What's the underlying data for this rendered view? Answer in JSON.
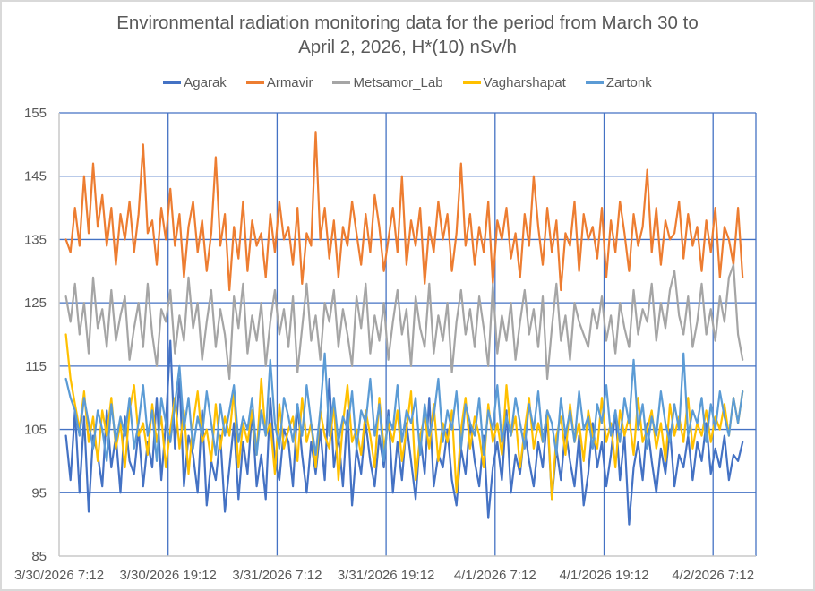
{
  "chart_data": {
    "type": "line",
    "title_line1": "Environmental radiation monitoring data for the period from March 30 to",
    "title_line2": "April 2, 2026, H*(10) nSv/h",
    "xlabel": "",
    "ylabel": "",
    "ylim": [
      85,
      155
    ],
    "yticks": [
      "155",
      "145",
      "135",
      "125",
      "115",
      "105",
      "95",
      "85"
    ],
    "ytick_values": [
      155,
      145,
      135,
      125,
      115,
      105,
      95,
      85
    ],
    "xticks": [
      "3/30/2026 7:12",
      "3/30/2026 19:12",
      "3/31/2026 7:12",
      "3/31/2026 19:12",
      "4/1/2026 7:12",
      "4/1/2026 19:12",
      "4/2/2026 7:12"
    ],
    "xtick_hours": [
      0,
      12,
      24,
      36,
      48,
      60,
      72
    ],
    "x_axis_end_hours": 79.5,
    "x_start_hours": 0.75,
    "x_step_hours": 0.5,
    "grid": true,
    "legend_position": "top",
    "gridline_color": "#4472C4",
    "series": [
      {
        "name": "Agarak",
        "color": "#4472C4",
        "values": [
          104,
          97,
          108,
          95,
          107,
          92,
          104,
          101,
          96,
          108,
          99,
          104,
          95,
          107,
          100,
          98,
          105,
          96,
          103,
          99,
          110,
          97,
          106,
          119,
          102,
          113,
          96,
          104,
          101,
          95,
          108,
          93,
          100,
          97,
          104,
          92,
          99,
          106,
          94,
          103,
          98,
          108,
          96,
          101,
          94,
          110,
          100,
          97,
          105,
          103,
          96,
          109,
          101,
          95,
          103,
          98,
          105,
          97,
          113,
          99,
          104,
          96,
          108,
          93,
          102,
          98,
          106,
          100,
          96,
          104,
          99,
          108,
          95,
          103,
          97,
          106,
          100,
          94,
          104,
          98,
          110,
          96,
          101,
          99,
          105,
          97,
          93,
          102,
          98,
          106,
          100,
          96,
          104,
          91,
          99,
          103,
          97,
          108,
          95,
          101,
          98,
          105,
          100,
          96,
          103,
          99,
          107,
          94,
          102,
          97,
          105,
          100,
          96,
          104,
          93,
          98,
          106,
          99,
          103,
          96,
          101,
          108,
          97,
          104,
          90,
          99,
          103,
          97,
          106,
          100,
          95,
          102,
          98,
          105,
          96,
          101,
          99,
          104,
          97,
          103,
          100,
          106,
          98,
          102,
          99,
          104,
          97,
          101,
          100,
          103
        ]
      },
      {
        "name": "Armavir",
        "color": "#ED7D31",
        "values": [
          135,
          133,
          140,
          134,
          145,
          136,
          147,
          137,
          142,
          134,
          140,
          131,
          139,
          135,
          141,
          133,
          139,
          150,
          136,
          138,
          131,
          140,
          135,
          143,
          134,
          139,
          129,
          137,
          141,
          133,
          138,
          130,
          136,
          148,
          134,
          139,
          127,
          137,
          132,
          141,
          130,
          138,
          134,
          136,
          129,
          139,
          133,
          141,
          135,
          137,
          131,
          140,
          128,
          136,
          134,
          152,
          135,
          140,
          132,
          138,
          129,
          137,
          134,
          141,
          136,
          131,
          139,
          133,
          142,
          137,
          130,
          135,
          140,
          133,
          145,
          131,
          138,
          134,
          140,
          128,
          137,
          133,
          141,
          135,
          139,
          130,
          136,
          147,
          134,
          139,
          131,
          137,
          133,
          141,
          128,
          138,
          135,
          140,
          132,
          136,
          129,
          139,
          134,
          145,
          137,
          131,
          140,
          133,
          138,
          127,
          136,
          134,
          141,
          130,
          139,
          135,
          137,
          132,
          140,
          129,
          138,
          133,
          141,
          136,
          130,
          139,
          134,
          137,
          146,
          133,
          140,
          131,
          138,
          135,
          136,
          141,
          132,
          139,
          134,
          137,
          130,
          138,
          133,
          140,
          129,
          137,
          135,
          131,
          140,
          129
        ]
      },
      {
        "name": "Metsamor_Lab",
        "color": "#A5A5A5",
        "values": [
          126,
          122,
          128,
          120,
          125,
          117,
          129,
          121,
          124,
          118,
          127,
          119,
          123,
          126,
          116,
          121,
          125,
          118,
          128,
          120,
          115,
          124,
          122,
          127,
          117,
          123,
          119,
          129,
          121,
          125,
          116,
          122,
          127,
          118,
          124,
          120,
          113,
          126,
          121,
          128,
          117,
          123,
          119,
          125,
          115,
          122,
          127,
          120,
          124,
          118,
          126,
          114,
          121,
          128,
          119,
          123,
          116,
          125,
          122,
          127,
          118,
          124,
          120,
          115,
          126,
          121,
          128,
          117,
          123,
          119,
          125,
          116,
          122,
          127,
          120,
          124,
          115,
          126,
          121,
          118,
          128,
          117,
          123,
          119,
          125,
          114,
          122,
          127,
          120,
          124,
          118,
          126,
          121,
          115,
          128,
          117,
          123,
          119,
          125,
          116,
          122,
          127,
          120,
          124,
          118,
          126,
          113,
          121,
          128,
          119,
          123,
          116,
          125,
          122,
          120,
          118,
          124,
          121,
          126,
          119,
          123,
          117,
          125,
          121,
          118,
          127,
          120,
          124,
          122,
          128,
          119,
          125,
          121,
          127,
          130,
          123,
          120,
          126,
          118,
          122,
          128,
          120,
          124,
          119,
          126,
          122,
          129,
          131,
          120,
          116
        ]
      },
      {
        "name": "Vagharshapat",
        "color": "#FFC000",
        "values": [
          120,
          113,
          109,
          105,
          111,
          103,
          107,
          100,
          108,
          104,
          110,
          102,
          106,
          99,
          108,
          112,
          104,
          106,
          101,
          109,
          103,
          107,
          99,
          105,
          110,
          102,
          108,
          98,
          106,
          111,
          103,
          105,
          100,
          109,
          102,
          107,
          104,
          111,
          99,
          106,
          103,
          108,
          101,
          113,
          104,
          106,
          98,
          109,
          102,
          105,
          107,
          100,
          110,
          103,
          106,
          99,
          108,
          104,
          102,
          109,
          97,
          106,
          112,
          103,
          105,
          101,
          108,
          104,
          99,
          110,
          102,
          106,
          103,
          108,
          100,
          105,
          111,
          97,
          104,
          107,
          102,
          109,
          100,
          106,
          103,
          108,
          95,
          105,
          110,
          102,
          107,
          104,
          99,
          109,
          103,
          106,
          101,
          112,
          104,
          107,
          99,
          105,
          110,
          102,
          106,
          103,
          108,
          94,
          104,
          107,
          101,
          109,
          103,
          106,
          100,
          108,
          104,
          102,
          110,
          103,
          106,
          99,
          108,
          104,
          107,
          101,
          110,
          103,
          105,
          108,
          102,
          106,
          100,
          109,
          104,
          107,
          103,
          110,
          102,
          106,
          104,
          108,
          103,
          107,
          105,
          109,
          104,
          110,
          106,
          111
        ]
      },
      {
        "name": "Zartonk",
        "color": "#5B9BD5",
        "values": [
          113,
          110,
          108,
          104,
          110,
          106,
          102,
          108,
          105,
          100,
          109,
          103,
          107,
          104,
          110,
          102,
          106,
          112,
          104,
          108,
          100,
          110,
          106,
          103,
          109,
          115,
          105,
          110,
          102,
          107,
          104,
          111,
          106,
          101,
          109,
          104,
          108,
          112,
          103,
          107,
          105,
          110,
          101,
          108,
          104,
          116,
          106,
          102,
          110,
          107,
          103,
          109,
          104,
          112,
          106,
          101,
          108,
          117,
          104,
          110,
          103,
          107,
          105,
          111,
          102,
          108,
          106,
          113,
          104,
          109,
          100,
          107,
          105,
          112,
          103,
          108,
          106,
          110,
          101,
          109,
          104,
          107,
          113,
          103,
          108,
          105,
          111,
          102,
          109,
          106,
          104,
          110,
          101,
          108,
          105,
          112,
          103,
          107,
          104,
          110,
          106,
          102,
          109,
          105,
          111,
          103,
          108,
          106,
          101,
          110,
          104,
          108,
          103,
          111,
          105,
          107,
          102,
          109,
          106,
          112,
          104,
          108,
          103,
          110,
          106,
          116,
          105,
          109,
          102,
          107,
          104,
          111,
          106,
          103,
          109,
          105,
          117,
          104,
          108,
          106,
          110,
          103,
          109,
          105,
          111,
          107,
          104,
          110,
          106,
          111
        ]
      }
    ]
  }
}
